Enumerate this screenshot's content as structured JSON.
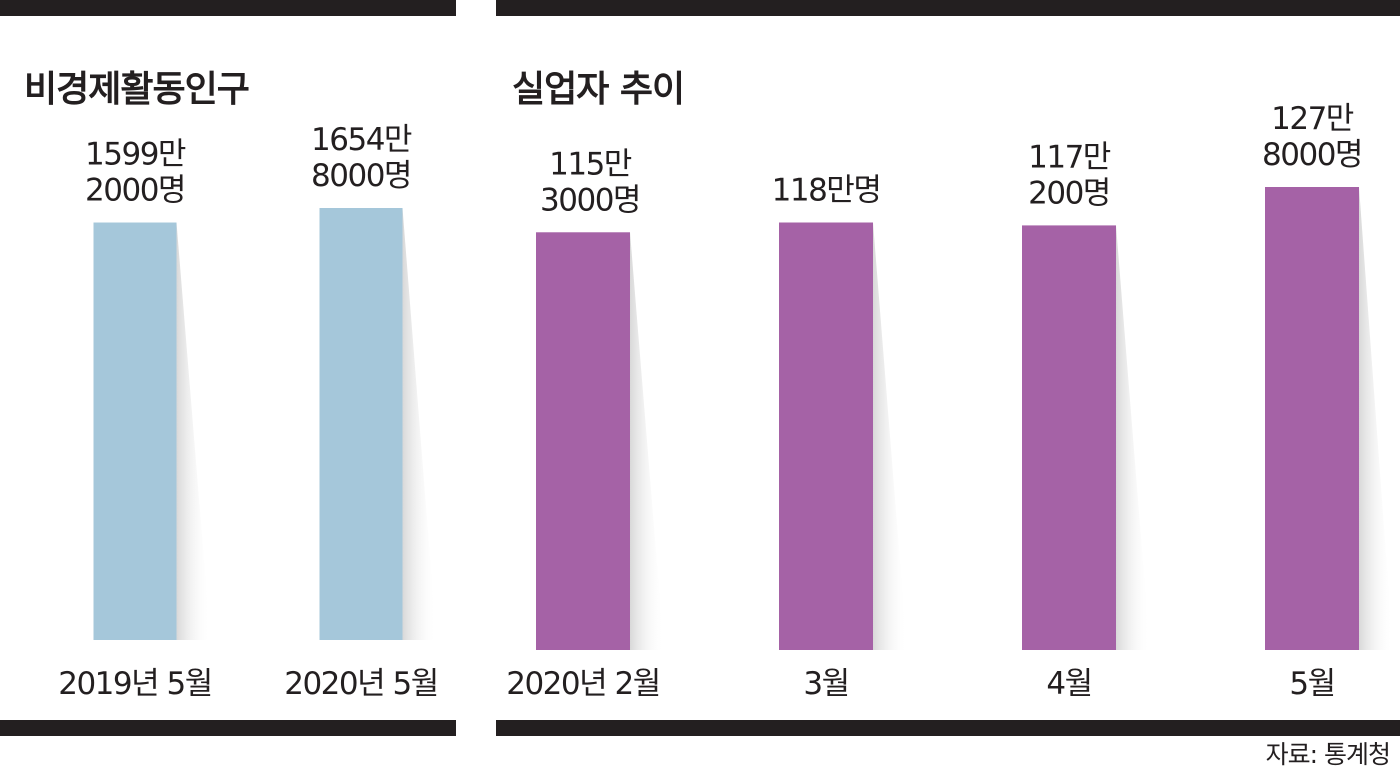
{
  "colors": {
    "rule": "#231f20",
    "text": "#231f20",
    "shadow": "#d4d4d4"
  },
  "source": "자료: 통계청",
  "chart_data": [
    {
      "type": "bar",
      "title": "비경제활동인구",
      "unit": "명",
      "color": "#a5c7da",
      "categories": [
        "2019년 5월",
        "2020년 5월"
      ],
      "values": [
        15992000,
        16548000
      ],
      "value_labels": [
        [
          "1599만",
          "2000명"
        ],
        [
          "1654만",
          "8000명"
        ]
      ],
      "ylim": [
        0,
        16548000
      ]
    },
    {
      "type": "bar",
      "title": "실업자 추이",
      "unit": "명",
      "color": "#a562a6",
      "categories": [
        "2020년 2월",
        "3월",
        "4월",
        "5월"
      ],
      "values": [
        1153000,
        1180000,
        1172000,
        1278000
      ],
      "value_labels": [
        [
          "115만",
          "3000명"
        ],
        [
          "118만명"
        ],
        [
          "117만",
          "200명"
        ],
        [
          "127만",
          "8000명"
        ]
      ],
      "ylim": [
        0,
        1278000
      ]
    }
  ]
}
